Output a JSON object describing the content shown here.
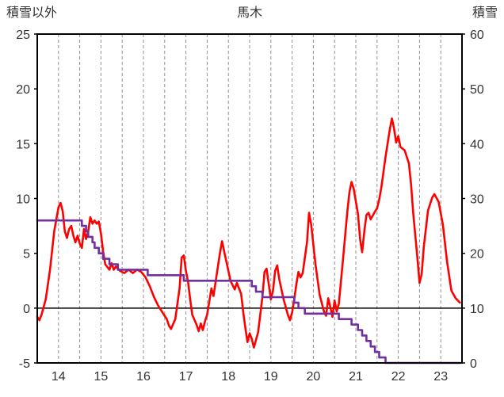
{
  "title": "馬木",
  "colors": {
    "temperature_line": "#ff0000",
    "snow_line": "#7030a0",
    "grid": "#909090",
    "axis": "#000000",
    "text": "#333333",
    "background": "#ffffff"
  },
  "chart_data": {
    "type": "line",
    "title": "馬木",
    "x_range": [
      14,
      24
    ],
    "x_ticks": [
      14,
      15,
      16,
      17,
      18,
      19,
      20,
      21,
      22,
      23
    ],
    "grid": {
      "vertical_interval_days": 0.5,
      "style": "dashed",
      "zero_line": true
    },
    "legend_position": "none",
    "left_axis": {
      "label": "積雪以外",
      "min": -5,
      "max": 25,
      "ticks": [
        25,
        20,
        15,
        10,
        5,
        0,
        -5
      ]
    },
    "right_axis": {
      "label": "積雪",
      "min": 0,
      "max": 60,
      "ticks": [
        60,
        50,
        40,
        30,
        20,
        10,
        0
      ]
    },
    "series": [
      {
        "id": "sonota",
        "name": "積雪以外",
        "axis": "left",
        "color": "#ff0000",
        "step": false,
        "points": [
          [
            14.0,
            -0.8
          ],
          [
            14.05,
            -1.1
          ],
          [
            14.1,
            -0.6
          ],
          [
            14.2,
            0.8
          ],
          [
            14.3,
            3.5
          ],
          [
            14.4,
            7.0
          ],
          [
            14.5,
            9.2
          ],
          [
            14.55,
            9.6
          ],
          [
            14.6,
            8.8
          ],
          [
            14.65,
            7.0
          ],
          [
            14.7,
            6.4
          ],
          [
            14.75,
            7.2
          ],
          [
            14.8,
            7.5
          ],
          [
            14.85,
            6.6
          ],
          [
            14.9,
            6.0
          ],
          [
            14.95,
            6.6
          ],
          [
            15.0,
            5.9
          ],
          [
            15.05,
            5.5
          ],
          [
            15.1,
            7.2
          ],
          [
            15.15,
            6.3
          ],
          [
            15.2,
            7.0
          ],
          [
            15.25,
            8.3
          ],
          [
            15.3,
            7.7
          ],
          [
            15.35,
            8.0
          ],
          [
            15.4,
            7.7
          ],
          [
            15.45,
            7.9
          ],
          [
            15.5,
            6.8
          ],
          [
            15.55,
            5.2
          ],
          [
            15.6,
            4.0
          ],
          [
            15.7,
            3.5
          ],
          [
            15.75,
            4.1
          ],
          [
            15.8,
            3.5
          ],
          [
            15.85,
            3.8
          ],
          [
            15.95,
            3.4
          ],
          [
            16.05,
            3.2
          ],
          [
            16.15,
            3.5
          ],
          [
            16.25,
            3.2
          ],
          [
            16.35,
            3.5
          ],
          [
            16.45,
            3.3
          ],
          [
            16.55,
            2.8
          ],
          [
            16.65,
            2.0
          ],
          [
            16.75,
            1.0
          ],
          [
            16.85,
            0.2
          ],
          [
            16.95,
            -0.4
          ],
          [
            17.05,
            -1.0
          ],
          [
            17.1,
            -1.6
          ],
          [
            17.15,
            -1.9
          ],
          [
            17.25,
            -1.0
          ],
          [
            17.35,
            1.8
          ],
          [
            17.4,
            4.6
          ],
          [
            17.45,
            4.8
          ],
          [
            17.5,
            3.4
          ],
          [
            17.55,
            2.4
          ],
          [
            17.6,
            0.8
          ],
          [
            17.65,
            -0.6
          ],
          [
            17.75,
            -1.5
          ],
          [
            17.8,
            -2.1
          ],
          [
            17.85,
            -1.4
          ],
          [
            17.9,
            -2.0
          ],
          [
            17.95,
            -1.2
          ],
          [
            18.0,
            -0.6
          ],
          [
            18.05,
            0.6
          ],
          [
            18.1,
            1.8
          ],
          [
            18.15,
            1.1
          ],
          [
            18.2,
            2.4
          ],
          [
            18.3,
            5.0
          ],
          [
            18.35,
            6.1
          ],
          [
            18.4,
            5.2
          ],
          [
            18.5,
            3.4
          ],
          [
            18.55,
            2.5
          ],
          [
            18.65,
            1.7
          ],
          [
            18.7,
            2.3
          ],
          [
            18.8,
            1.3
          ],
          [
            18.85,
            -0.4
          ],
          [
            18.9,
            -1.8
          ],
          [
            18.95,
            -3.1
          ],
          [
            19.0,
            -2.3
          ],
          [
            19.05,
            -2.8
          ],
          [
            19.1,
            -3.6
          ],
          [
            19.2,
            -2.2
          ],
          [
            19.3,
            1.0
          ],
          [
            19.35,
            3.3
          ],
          [
            19.4,
            3.6
          ],
          [
            19.45,
            2.2
          ],
          [
            19.5,
            0.8
          ],
          [
            19.55,
            1.6
          ],
          [
            19.6,
            3.4
          ],
          [
            19.65,
            3.9
          ],
          [
            19.7,
            2.6
          ],
          [
            19.8,
            0.8
          ],
          [
            19.9,
            -0.6
          ],
          [
            19.95,
            -1.1
          ],
          [
            20.0,
            -0.4
          ],
          [
            20.05,
            0.8
          ],
          [
            20.1,
            2.2
          ],
          [
            20.15,
            3.3
          ],
          [
            20.2,
            2.8
          ],
          [
            20.25,
            3.2
          ],
          [
            20.35,
            6.0
          ],
          [
            20.4,
            8.7
          ],
          [
            20.45,
            7.6
          ],
          [
            20.55,
            4.0
          ],
          [
            20.65,
            1.2
          ],
          [
            20.75,
            -0.3
          ],
          [
            20.8,
            -0.7
          ],
          [
            20.85,
            0.9
          ],
          [
            20.9,
            0.1
          ],
          [
            20.95,
            -0.8
          ],
          [
            21.0,
            0.7
          ],
          [
            21.05,
            -0.3
          ],
          [
            21.1,
            0.4
          ],
          [
            21.2,
            4.5
          ],
          [
            21.3,
            8.8
          ],
          [
            21.35,
            10.6
          ],
          [
            21.4,
            11.5
          ],
          [
            21.45,
            10.9
          ],
          [
            21.55,
            8.6
          ],
          [
            21.6,
            6.3
          ],
          [
            21.65,
            5.1
          ],
          [
            21.7,
            7.0
          ],
          [
            21.75,
            8.5
          ],
          [
            21.8,
            8.7
          ],
          [
            21.85,
            8.1
          ],
          [
            21.95,
            8.8
          ],
          [
            22.0,
            9.1
          ],
          [
            22.05,
            9.9
          ],
          [
            22.1,
            11.0
          ],
          [
            22.2,
            13.8
          ],
          [
            22.3,
            16.3
          ],
          [
            22.35,
            17.3
          ],
          [
            22.4,
            16.4
          ],
          [
            22.45,
            15.1
          ],
          [
            22.5,
            15.7
          ],
          [
            22.55,
            14.7
          ],
          [
            22.65,
            14.4
          ],
          [
            22.75,
            13.2
          ],
          [
            22.8,
            11.3
          ],
          [
            22.85,
            8.7
          ],
          [
            22.95,
            4.6
          ],
          [
            23.0,
            2.3
          ],
          [
            23.05,
            3.1
          ],
          [
            23.1,
            5.6
          ],
          [
            23.2,
            8.9
          ],
          [
            23.3,
            10.1
          ],
          [
            23.35,
            10.4
          ],
          [
            23.45,
            9.7
          ],
          [
            23.55,
            7.6
          ],
          [
            23.65,
            4.2
          ],
          [
            23.75,
            1.6
          ],
          [
            23.85,
            0.9
          ],
          [
            23.95,
            0.5
          ]
        ]
      },
      {
        "id": "sekisetsu",
        "name": "積雪",
        "axis": "right",
        "color": "#7030a0",
        "step": true,
        "points": [
          [
            14.0,
            26
          ],
          [
            15.0,
            26
          ],
          [
            15.05,
            25
          ],
          [
            15.15,
            24
          ],
          [
            15.2,
            23
          ],
          [
            15.3,
            22
          ],
          [
            15.35,
            21
          ],
          [
            15.45,
            20
          ],
          [
            15.55,
            19
          ],
          [
            15.7,
            18
          ],
          [
            15.9,
            17
          ],
          [
            16.55,
            17
          ],
          [
            16.6,
            16
          ],
          [
            17.35,
            16
          ],
          [
            17.45,
            15
          ],
          [
            18.95,
            15
          ],
          [
            19.05,
            14
          ],
          [
            19.15,
            13
          ],
          [
            19.3,
            12
          ],
          [
            19.95,
            12
          ],
          [
            20.05,
            11
          ],
          [
            20.15,
            10
          ],
          [
            20.3,
            9
          ],
          [
            21.0,
            9
          ],
          [
            21.1,
            8
          ],
          [
            21.3,
            8
          ],
          [
            21.4,
            7
          ],
          [
            21.55,
            6
          ],
          [
            21.65,
            5
          ],
          [
            21.75,
            4
          ],
          [
            21.85,
            3
          ],
          [
            21.95,
            2
          ],
          [
            22.05,
            1
          ],
          [
            22.2,
            0
          ],
          [
            23.95,
            0
          ]
        ]
      }
    ]
  }
}
